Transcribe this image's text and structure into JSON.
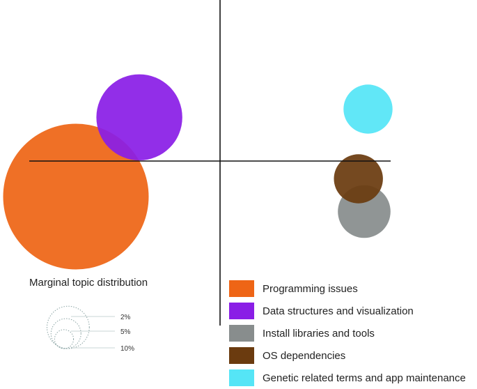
{
  "chart_data": {
    "type": "scatter",
    "title": "",
    "xlabel": "",
    "ylabel": "",
    "grid": false,
    "legend_position": "bottom-right",
    "series": [
      {
        "name": "Programming issues",
        "x": -0.75,
        "y": -0.26,
        "size_percent": 23,
        "color": "#ee6516"
      },
      {
        "name": "Data structures and visualization",
        "x": -0.42,
        "y": 0.32,
        "size_percent": 8,
        "color": "#8a1ee6"
      },
      {
        "name": "Install libraries and tools",
        "x": 0.75,
        "y": -0.37,
        "size_percent": 3,
        "color": "#888d8d"
      },
      {
        "name": "OS dependencies",
        "x": 0.72,
        "y": -0.13,
        "size_percent": 2.6,
        "color": "#6b3b0f"
      },
      {
        "name": "Genetic related terms and app maintenance",
        "x": 0.77,
        "y": 0.38,
        "size_percent": 2.6,
        "color": "#55e5f6"
      }
    ],
    "size_legend": {
      "title": "Marginal topic distribution",
      "levels": [
        {
          "label": "2%",
          "value": 2
        },
        {
          "label": "5%",
          "value": 5
        },
        {
          "label": "10%",
          "value": 10
        }
      ]
    }
  }
}
